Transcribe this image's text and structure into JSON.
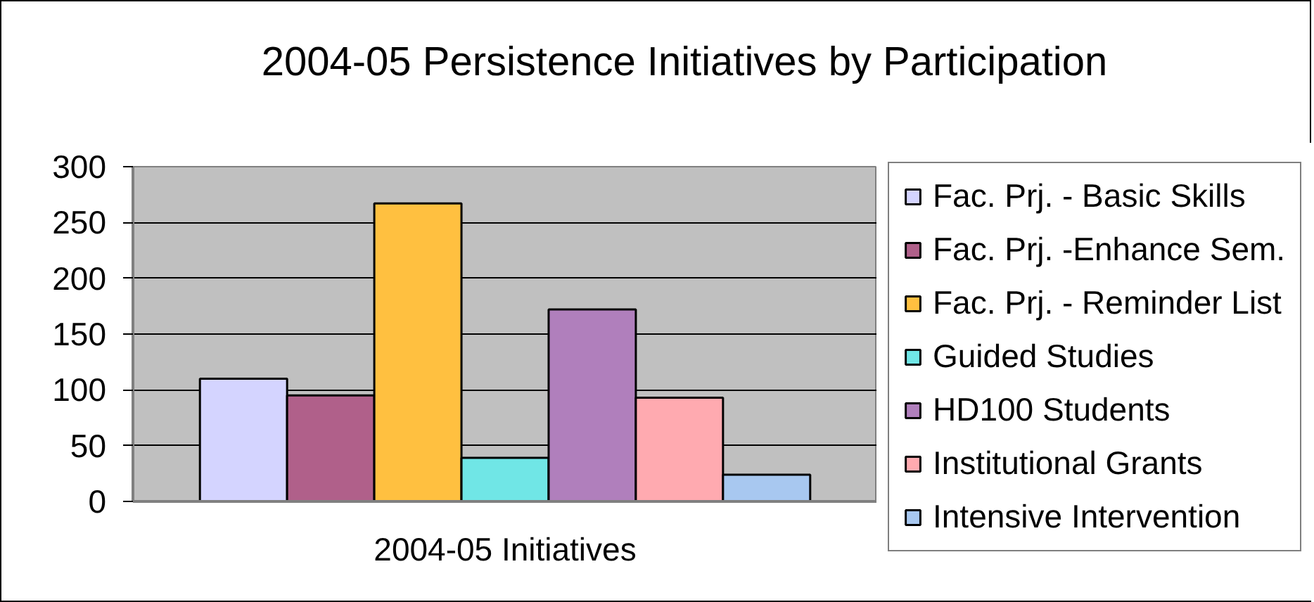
{
  "chart_data": {
    "type": "bar",
    "title": "2004-05 Persistence Initiatives by Participation",
    "categories": [
      "2004-05 Initiatives"
    ],
    "series": [
      {
        "name": "Fac. Prj. - Basic Skills",
        "color": "#d4d4ff",
        "values": [
          110
        ]
      },
      {
        "name": "Fac. Prj. -Enhance Sem.",
        "color": "#b0608a",
        "values": [
          95
        ]
      },
      {
        "name": "Fac. Prj. - Reminder List",
        "color": "#ffc040",
        "values": [
          267
        ]
      },
      {
        "name": "Guided Studies",
        "color": "#70e6e6",
        "values": [
          39
        ]
      },
      {
        "name": "HD100 Students",
        "color": "#b07fbc",
        "values": [
          172
        ]
      },
      {
        "name": "Institutional Grants",
        "color": "#ffaab0",
        "values": [
          93
        ]
      },
      {
        "name": "Intensive Intervention",
        "color": "#a8c8f0",
        "values": [
          24
        ]
      }
    ],
    "ylim": [
      0,
      300
    ],
    "yticks": [
      0,
      50,
      100,
      150,
      200,
      250,
      300
    ],
    "grid": "y",
    "legend": "right"
  }
}
